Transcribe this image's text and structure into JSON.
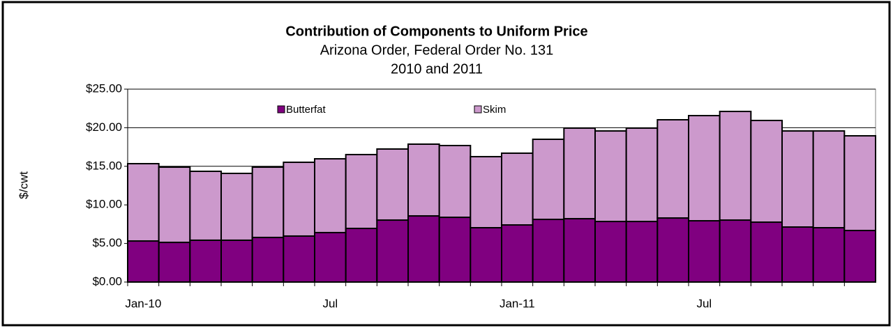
{
  "chart_data": {
    "type": "stacked_bar",
    "title": "Contribution of Components to Uniform Price",
    "subtitle": [
      "Arizona Order, Federal Order No. 131",
      "2010 and 2011"
    ],
    "y_label": "$/cwt",
    "categories": [
      "Jan-10",
      null,
      null,
      null,
      null,
      null,
      "Jul",
      null,
      null,
      null,
      null,
      null,
      "Jan-11",
      null,
      null,
      null,
      null,
      null,
      "Jul",
      null,
      null,
      null,
      null,
      null
    ],
    "series": [
      {
        "name": "Butterfat",
        "color": "#800080",
        "values": [
          5.32,
          5.14,
          5.42,
          5.42,
          5.78,
          5.96,
          6.41,
          6.95,
          8.03,
          8.57,
          8.39,
          7.04,
          7.4,
          8.12,
          8.21,
          7.85,
          7.85,
          8.3,
          7.94,
          8.03,
          7.76,
          7.13,
          7.04,
          6.68
        ]
      },
      {
        "name": "Skim",
        "color": "#cc99cc",
        "values": [
          10.02,
          9.75,
          8.93,
          8.66,
          9.11,
          9.56,
          9.56,
          9.57,
          9.21,
          9.3,
          9.3,
          9.21,
          9.3,
          10.38,
          11.74,
          11.73,
          12.1,
          12.73,
          13.63,
          14.08,
          13.18,
          12.45,
          12.54,
          12.27
        ]
      }
    ],
    "ylim": [
      0,
      25
    ],
    "yticks": [
      {
        "value": 0,
        "label": "$0.00"
      },
      {
        "value": 5,
        "label": "$5.00"
      },
      {
        "value": 10,
        "label": "$10.00"
      },
      {
        "value": 15,
        "label": "$15.00"
      },
      {
        "value": 20,
        "label": "$20.00"
      },
      {
        "value": 25,
        "label": "$25.00"
      }
    ],
    "grid": true,
    "legend": "top"
  }
}
